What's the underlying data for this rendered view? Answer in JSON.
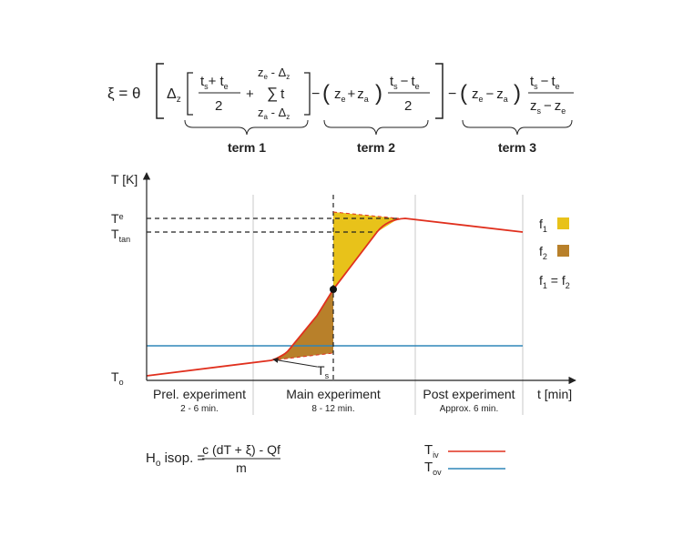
{
  "formula": {
    "xi_lhs": "ξ = θ",
    "delta": "Δ",
    "delta_sub": "z",
    "t": "t",
    "s": "s",
    "e": "e",
    "a": "a",
    "plus": "+",
    "minus": "−",
    "sum": "∑",
    "z_e": "z",
    "upper_limit": "z",
    "upper_limit_sub": "e",
    "upper_limit_tail": " - Δ",
    "lower_limit": "z",
    "lower_limit_sub": "a",
    "lower_limit_tail": " - Δ",
    "limit_delta_sub": "z",
    "two": "2",
    "term1": "term 1",
    "term2": "term 2",
    "term3": "term 3"
  },
  "chart": {
    "y_axis_label": "T [K]",
    "x_axis_label": "t [min]",
    "te_label": "T",
    "te_sub": "e",
    "ttan_label": "T",
    "ttan_sub": "tan",
    "to_label": "T",
    "to_sub": "o",
    "ts_label": "T",
    "ts_sub": "s",
    "phases": [
      {
        "name": "Prel. experiment",
        "duration": "2 - 6 min."
      },
      {
        "name": "Main experiment",
        "duration": "8 - 12 min."
      },
      {
        "name": "Post experiment",
        "duration": "Approx. 6 min."
      }
    ],
    "legend": {
      "f1": "f",
      "f1_sub": "1",
      "f2": "f",
      "f2_sub": "2",
      "eq_f": "f",
      "eq_sub1": "1",
      "eq_mid": " = f",
      "eq_sub2": "2"
    },
    "colors": {
      "f1": "#e8c21a",
      "f2": "#b8802a",
      "red_curve": "#e0301e",
      "blue_line": "#2f86b8"
    }
  },
  "bottom": {
    "h_main": "H",
    "h_sub": "o",
    "h_rest": " isop. =",
    "numerator": "c (dT + ξ) - Qf",
    "denominator": "m",
    "tiv": "T",
    "tiv_sub": "iv",
    "tov": "T",
    "tov_sub": "ov"
  }
}
